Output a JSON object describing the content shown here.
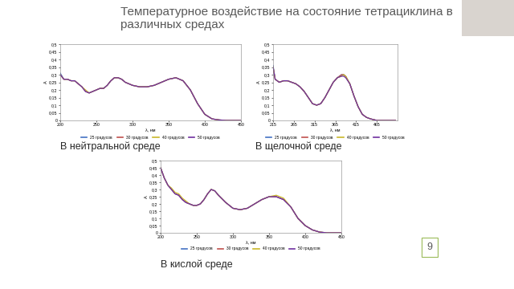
{
  "slide": {
    "title": "Температурное воздействие на состояние тетрациклина в различных средах",
    "page": 9
  },
  "chart_data": [
    {
      "type": "line",
      "title": "В нейтральной среде",
      "x_label": "λ, нм",
      "y_label": "A",
      "xlim": [
        200,
        450
      ],
      "xticks": [
        200,
        250,
        300,
        350,
        400,
        450
      ],
      "ylim": [
        0,
        0.5
      ],
      "yticks": [
        {
          "value": 0,
          "label": "0"
        },
        {
          "value": 0.05,
          "label": "0,05"
        },
        {
          "value": 0.1,
          "label": "0,1"
        },
        {
          "value": 0.15,
          "label": "0,15"
        },
        {
          "value": 0.2,
          "label": "0,2"
        },
        {
          "value": 0.25,
          "label": "0,25"
        },
        {
          "value": 0.3,
          "label": "0,3"
        },
        {
          "value": 0.35,
          "label": "0,35"
        },
        {
          "value": 0.4,
          "label": "0,4"
        },
        {
          "value": 0.45,
          "label": "0,45"
        },
        {
          "value": 0.5,
          "label": "0,5"
        }
      ],
      "grid": false,
      "legend": "lower center",
      "x": [
        200,
        205,
        210,
        215,
        220,
        225,
        230,
        235,
        240,
        245,
        250,
        255,
        260,
        265,
        270,
        275,
        280,
        285,
        290,
        300,
        310,
        320,
        330,
        340,
        350,
        360,
        370,
        380,
        390,
        400,
        410,
        420,
        430,
        450
      ],
      "series": [
        {
          "name": "25 градусов",
          "color": "#4472c4",
          "values": [
            0.31,
            0.27,
            0.27,
            0.26,
            0.26,
            0.24,
            0.22,
            0.19,
            0.18,
            0.19,
            0.2,
            0.21,
            0.21,
            0.23,
            0.26,
            0.28,
            0.28,
            0.27,
            0.25,
            0.23,
            0.22,
            0.22,
            0.23,
            0.25,
            0.27,
            0.28,
            0.26,
            0.2,
            0.11,
            0.04,
            0.01,
            0.003,
            0.0,
            0.0
          ]
        },
        {
          "name": "30 градусов",
          "color": "#c0504d",
          "values": [
            0.3,
            0.27,
            0.27,
            0.26,
            0.26,
            0.24,
            0.22,
            0.19,
            0.18,
            0.19,
            0.2,
            0.21,
            0.21,
            0.23,
            0.26,
            0.28,
            0.28,
            0.27,
            0.25,
            0.23,
            0.22,
            0.22,
            0.23,
            0.25,
            0.27,
            0.28,
            0.26,
            0.2,
            0.11,
            0.04,
            0.01,
            0.003,
            0.0,
            0.0
          ]
        },
        {
          "name": "40 градусов",
          "color": "#c9b82a",
          "values": [
            0.3,
            0.27,
            0.27,
            0.26,
            0.26,
            0.24,
            0.22,
            0.2,
            0.18,
            0.19,
            0.2,
            0.21,
            0.21,
            0.23,
            0.26,
            0.28,
            0.28,
            0.27,
            0.25,
            0.23,
            0.22,
            0.22,
            0.23,
            0.25,
            0.27,
            0.28,
            0.26,
            0.2,
            0.11,
            0.04,
            0.01,
            0.003,
            0.0,
            0.0
          ]
        },
        {
          "name": "50 градусов",
          "color": "#7030a0",
          "values": [
            0.3,
            0.27,
            0.27,
            0.26,
            0.26,
            0.24,
            0.22,
            0.19,
            0.18,
            0.19,
            0.2,
            0.21,
            0.21,
            0.23,
            0.26,
            0.28,
            0.28,
            0.27,
            0.25,
            0.23,
            0.22,
            0.22,
            0.23,
            0.25,
            0.27,
            0.28,
            0.26,
            0.2,
            0.11,
            0.04,
            0.01,
            0.003,
            0.0,
            0.0
          ]
        }
      ]
    },
    {
      "type": "line",
      "title": "В щелочной среде",
      "x_label": "λ, нм",
      "y_label": "A",
      "xlim": [
        215,
        515
      ],
      "xticks": [
        215,
        265,
        315,
        365,
        415,
        465
      ],
      "ylim": [
        0,
        0.5
      ],
      "yticks": [
        {
          "value": 0,
          "label": "0"
        },
        {
          "value": 0.05,
          "label": "0,05"
        },
        {
          "value": 0.1,
          "label": "0,1"
        },
        {
          "value": 0.15,
          "label": "0,15"
        },
        {
          "value": 0.2,
          "label": "0,2"
        },
        {
          "value": 0.25,
          "label": "0,25"
        },
        {
          "value": 0.3,
          "label": "0,3"
        },
        {
          "value": 0.35,
          "label": "0,35"
        },
        {
          "value": 0.4,
          "label": "0,4"
        },
        {
          "value": 0.45,
          "label": "0,45"
        },
        {
          "value": 0.5,
          "label": "0,5"
        }
      ],
      "grid": false,
      "legend": "lower center",
      "x": [
        215,
        220,
        225,
        230,
        240,
        250,
        260,
        270,
        280,
        290,
        300,
        310,
        320,
        330,
        340,
        350,
        360,
        370,
        380,
        385,
        390,
        400,
        410,
        420,
        430,
        440,
        450,
        465,
        490,
        510
      ],
      "series": [
        {
          "name": "25 градусов",
          "color": "#4472c4",
          "values": [
            0.36,
            0.27,
            0.26,
            0.25,
            0.26,
            0.26,
            0.25,
            0.24,
            0.22,
            0.19,
            0.15,
            0.11,
            0.1,
            0.11,
            0.15,
            0.2,
            0.25,
            0.28,
            0.3,
            0.3,
            0.29,
            0.24,
            0.16,
            0.09,
            0.04,
            0.02,
            0.01,
            0.0,
            0.0,
            0.0
          ]
        },
        {
          "name": "30 градусов",
          "color": "#c0504d",
          "values": [
            0.35,
            0.27,
            0.26,
            0.25,
            0.26,
            0.26,
            0.25,
            0.24,
            0.22,
            0.19,
            0.15,
            0.11,
            0.1,
            0.11,
            0.15,
            0.2,
            0.25,
            0.28,
            0.3,
            0.3,
            0.29,
            0.24,
            0.16,
            0.09,
            0.04,
            0.02,
            0.01,
            0.0,
            0.0,
            0.0
          ]
        },
        {
          "name": "40 градусов",
          "color": "#c9b82a",
          "values": [
            0.35,
            0.27,
            0.26,
            0.25,
            0.26,
            0.26,
            0.25,
            0.24,
            0.22,
            0.19,
            0.15,
            0.11,
            0.1,
            0.11,
            0.15,
            0.2,
            0.25,
            0.28,
            0.29,
            0.3,
            0.29,
            0.24,
            0.16,
            0.09,
            0.04,
            0.02,
            0.01,
            0.0,
            0.0,
            0.0
          ]
        },
        {
          "name": "50 градусов",
          "color": "#7030a0",
          "values": [
            0.35,
            0.27,
            0.26,
            0.25,
            0.26,
            0.26,
            0.25,
            0.24,
            0.22,
            0.19,
            0.15,
            0.11,
            0.1,
            0.11,
            0.15,
            0.2,
            0.25,
            0.28,
            0.29,
            0.29,
            0.28,
            0.24,
            0.16,
            0.09,
            0.04,
            0.02,
            0.01,
            0.0,
            0.0,
            0.0
          ]
        }
      ]
    },
    {
      "type": "line",
      "title": "В кислой среде",
      "x_label": "λ, нм",
      "y_label": "A",
      "xlim": [
        200,
        450
      ],
      "xticks": [
        200,
        250,
        300,
        350,
        400,
        450
      ],
      "ylim": [
        0,
        0.5
      ],
      "yticks": [
        {
          "value": 0,
          "label": "0"
        },
        {
          "value": 0.05,
          "label": "0,05"
        },
        {
          "value": 0.1,
          "label": "0,1"
        },
        {
          "value": 0.15,
          "label": "0,15"
        },
        {
          "value": 0.2,
          "label": "0,2"
        },
        {
          "value": 0.25,
          "label": "0,25"
        },
        {
          "value": 0.3,
          "label": "0,3"
        },
        {
          "value": 0.35,
          "label": "0,35"
        },
        {
          "value": 0.4,
          "label": "0,4"
        },
        {
          "value": 0.45,
          "label": "0,45"
        },
        {
          "value": 0.5,
          "label": "0,5"
        }
      ],
      "grid": false,
      "legend": "lower center",
      "x": [
        200,
        205,
        210,
        215,
        220,
        225,
        230,
        235,
        240,
        245,
        250,
        255,
        260,
        265,
        270,
        275,
        280,
        290,
        300,
        310,
        320,
        330,
        340,
        350,
        360,
        370,
        380,
        390,
        400,
        410,
        420,
        430,
        450
      ],
      "series": [
        {
          "name": "25 градусов",
          "color": "#4472c4",
          "values": [
            0.45,
            0.38,
            0.33,
            0.3,
            0.27,
            0.26,
            0.23,
            0.21,
            0.2,
            0.19,
            0.19,
            0.2,
            0.23,
            0.27,
            0.3,
            0.29,
            0.26,
            0.21,
            0.17,
            0.16,
            0.17,
            0.2,
            0.23,
            0.25,
            0.25,
            0.23,
            0.18,
            0.1,
            0.05,
            0.02,
            0.005,
            0.0,
            0.0
          ]
        },
        {
          "name": "30 градусов",
          "color": "#c0504d",
          "values": [
            0.45,
            0.38,
            0.33,
            0.3,
            0.27,
            0.26,
            0.23,
            0.21,
            0.2,
            0.19,
            0.19,
            0.2,
            0.23,
            0.27,
            0.3,
            0.29,
            0.26,
            0.21,
            0.17,
            0.16,
            0.17,
            0.2,
            0.23,
            0.25,
            0.25,
            0.23,
            0.18,
            0.1,
            0.05,
            0.02,
            0.005,
            0.0,
            0.0
          ]
        },
        {
          "name": "40 градусов",
          "color": "#c9b82a",
          "values": [
            0.45,
            0.38,
            0.33,
            0.31,
            0.28,
            0.27,
            0.24,
            0.22,
            0.2,
            0.19,
            0.19,
            0.2,
            0.23,
            0.27,
            0.3,
            0.29,
            0.26,
            0.21,
            0.17,
            0.16,
            0.17,
            0.2,
            0.23,
            0.25,
            0.26,
            0.24,
            0.18,
            0.1,
            0.05,
            0.02,
            0.005,
            0.0,
            0.0
          ]
        },
        {
          "name": "50 градусов",
          "color": "#7030a0",
          "values": [
            0.45,
            0.38,
            0.33,
            0.3,
            0.27,
            0.26,
            0.23,
            0.21,
            0.2,
            0.19,
            0.19,
            0.2,
            0.23,
            0.27,
            0.3,
            0.29,
            0.26,
            0.21,
            0.17,
            0.16,
            0.17,
            0.2,
            0.23,
            0.25,
            0.25,
            0.23,
            0.18,
            0.1,
            0.05,
            0.02,
            0.005,
            0.0,
            0.0
          ]
        }
      ]
    }
  ]
}
